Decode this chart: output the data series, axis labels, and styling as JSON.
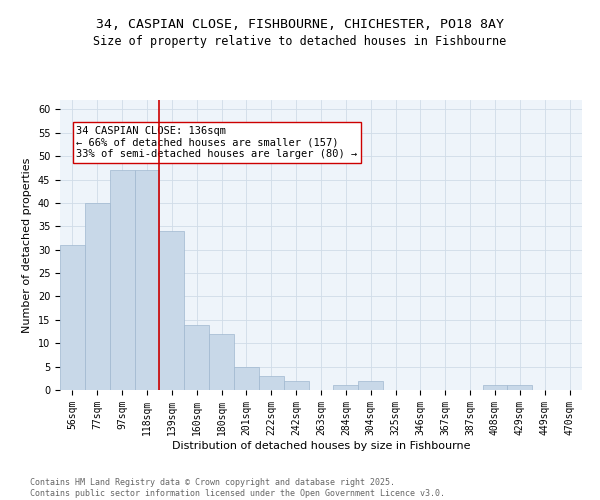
{
  "title_line1": "34, CASPIAN CLOSE, FISHBOURNE, CHICHESTER, PO18 8AY",
  "title_line2": "Size of property relative to detached houses in Fishbourne",
  "xlabel": "Distribution of detached houses by size in Fishbourne",
  "ylabel": "Number of detached properties",
  "bin_labels": [
    "56sqm",
    "77sqm",
    "97sqm",
    "118sqm",
    "139sqm",
    "160sqm",
    "180sqm",
    "201sqm",
    "222sqm",
    "242sqm",
    "263sqm",
    "284sqm",
    "304sqm",
    "325sqm",
    "346sqm",
    "367sqm",
    "387sqm",
    "408sqm",
    "429sqm",
    "449sqm",
    "470sqm"
  ],
  "bar_values": [
    31,
    40,
    47,
    47,
    34,
    14,
    12,
    5,
    3,
    2,
    0,
    1,
    2,
    0,
    0,
    0,
    0,
    1,
    1,
    0,
    0
  ],
  "bar_color": "#c8d8e8",
  "bar_edge_color": "#a0b8d0",
  "vline_color": "#cc0000",
  "vline_x_index": 3.5,
  "annotation_text": "34 CASPIAN CLOSE: 136sqm\n← 66% of detached houses are smaller (157)\n33% of semi-detached houses are larger (80) →",
  "annotation_box_color": "#ffffff",
  "annotation_box_edge": "#cc0000",
  "ylim": [
    0,
    62
  ],
  "yticks": [
    0,
    5,
    10,
    15,
    20,
    25,
    30,
    35,
    40,
    45,
    50,
    55,
    60
  ],
  "grid_color": "#d0dce8",
  "background_color": "#eef4fa",
  "footer_text": "Contains HM Land Registry data © Crown copyright and database right 2025.\nContains public sector information licensed under the Open Government Licence v3.0.",
  "title_fontsize": 9.5,
  "subtitle_fontsize": 8.5,
  "axis_label_fontsize": 8,
  "tick_fontsize": 7,
  "annotation_fontsize": 7.5,
  "footer_fontsize": 6
}
